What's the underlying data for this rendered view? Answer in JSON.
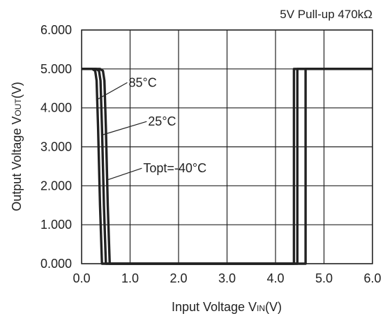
{
  "chart_data": {
    "type": "line",
    "title": "5V Pull-up 470kΩ",
    "xlabel": {
      "main": "Input Voltage V",
      "sub": "IN",
      "tail": "(V)"
    },
    "ylabel": {
      "main": "Output Voltage V",
      "sub": "OUT",
      "tail": "(V)"
    },
    "xlim": [
      0,
      6
    ],
    "ylim": [
      0,
      6
    ],
    "x_ticks": [
      "0.0",
      "1.0",
      "2.0",
      "3.0",
      "4.0",
      "5.0",
      "6.0"
    ],
    "y_ticks": [
      "0.000",
      "1.000",
      "2.000",
      "3.000",
      "4.000",
      "5.000",
      "6.000"
    ],
    "grid": true,
    "line_color": "#222222",
    "series": [
      {
        "name": "85°C",
        "x": [
          0.0,
          0.22,
          0.28,
          0.31,
          0.34,
          0.38,
          0.42,
          4.38,
          4.38,
          6.0
        ],
        "y": [
          5.0,
          5.0,
          4.95,
          4.7,
          3.5,
          1.5,
          0.0,
          0.0,
          5.0,
          5.0
        ]
      },
      {
        "name": "25°C",
        "x": [
          0.0,
          0.3,
          0.36,
          0.39,
          0.42,
          0.46,
          0.5,
          4.45,
          4.45,
          6.0
        ],
        "y": [
          5.0,
          5.0,
          4.95,
          4.7,
          3.5,
          1.5,
          0.0,
          0.0,
          5.0,
          5.0
        ]
      },
      {
        "name": "Topt=-40°C",
        "x": [
          0.0,
          0.38,
          0.44,
          0.47,
          0.5,
          0.54,
          0.58,
          4.62,
          4.62,
          6.0
        ],
        "y": [
          5.0,
          5.0,
          4.95,
          4.7,
          3.5,
          1.5,
          0.0,
          0.0,
          5.0,
          5.0
        ]
      }
    ],
    "annotations": [
      {
        "text": "85°C",
        "point": [
          0.3,
          4.2
        ],
        "label_at": [
          1.0,
          4.65
        ]
      },
      {
        "text": "25°C",
        "point": [
          0.41,
          3.3
        ],
        "label_at": [
          1.4,
          3.65
        ]
      },
      {
        "text": "Topt=-40°C",
        "point": [
          0.53,
          2.15
        ],
        "label_at": [
          1.3,
          2.45
        ]
      }
    ]
  }
}
